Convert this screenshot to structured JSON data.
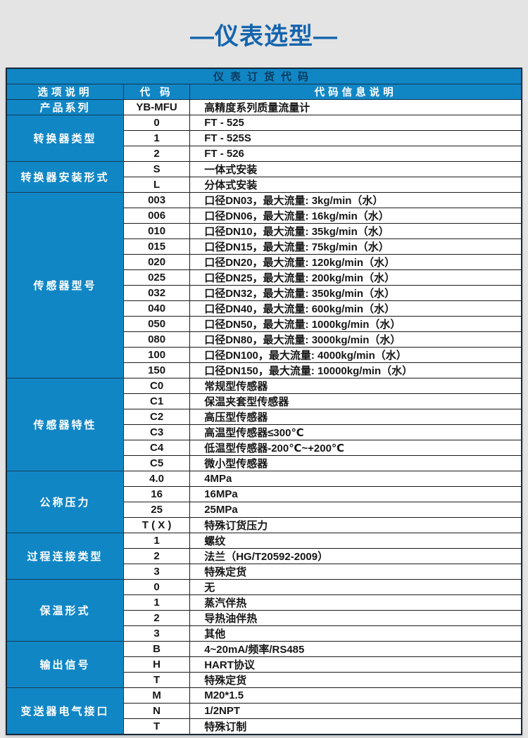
{
  "page_title": "—仪表选型—",
  "table": {
    "title": "仪表订货代码",
    "columns": [
      "选项说明",
      "代 码",
      "代码信息说明"
    ],
    "groups": [
      {
        "label": "产品系列",
        "rows": [
          {
            "code": "YB-MFU",
            "desc": "高精度系列质量流量计"
          }
        ]
      },
      {
        "label": "转换器类型",
        "rows": [
          {
            "code": "0",
            "desc": "FT - 525"
          },
          {
            "code": "1",
            "desc": "FT - 525S"
          },
          {
            "code": "2",
            "desc": "FT - 526"
          }
        ]
      },
      {
        "label": "转换器安装形式",
        "rows": [
          {
            "code": "S",
            "desc": "一体式安装"
          },
          {
            "code": "L",
            "desc": "分体式安装"
          }
        ]
      },
      {
        "label": "传感器型号",
        "rows": [
          {
            "code": "003",
            "desc": "口径DN03，最大流量: 3kg/min（水）"
          },
          {
            "code": "006",
            "desc": "口径DN06，最大流量: 16kg/min（水）"
          },
          {
            "code": "010",
            "desc": "口径DN10，最大流量: 35kg/min（水）"
          },
          {
            "code": "015",
            "desc": "口径DN15，最大流量: 75kg/min（水）"
          },
          {
            "code": "020",
            "desc": "口径DN20，最大流量: 120kg/min（水）"
          },
          {
            "code": "025",
            "desc": "口径DN25，最大流量: 200kg/min（水）"
          },
          {
            "code": "032",
            "desc": "口径DN32，最大流量: 350kg/min（水）"
          },
          {
            "code": "040",
            "desc": "口径DN40，最大流量: 600kg/min（水）"
          },
          {
            "code": "050",
            "desc": "口径DN50，最大流量: 1000kg/min（水）"
          },
          {
            "code": "080",
            "desc": "口径DN80，最大流量: 3000kg/min（水）"
          },
          {
            "code": "100",
            "desc": "口径DN100，最大流量: 4000kg/min（水）"
          },
          {
            "code": "150",
            "desc": "口径DN150，最大流量: 10000kg/min（水）"
          }
        ]
      },
      {
        "label": "传感器特性",
        "rows": [
          {
            "code": "C0",
            "desc": "常规型传感器"
          },
          {
            "code": "C1",
            "desc": "保温夹套型传感器"
          },
          {
            "code": "C2",
            "desc": "高压型传感器"
          },
          {
            "code": "C3",
            "desc": "高温型传感器≤300℃"
          },
          {
            "code": "C4",
            "desc": "低温型传感器-200℃~+200℃"
          },
          {
            "code": "C5",
            "desc": "微小型传感器"
          }
        ]
      },
      {
        "label": "公称压力",
        "rows": [
          {
            "code": "4.0",
            "desc": "4MPa"
          },
          {
            "code": "16",
            "desc": "16MPa"
          },
          {
            "code": "25",
            "desc": "25MPa"
          },
          {
            "code": "T ( X )",
            "desc": "特殊订货压力"
          }
        ]
      },
      {
        "label": "过程连接类型",
        "rows": [
          {
            "code": "1",
            "desc": "螺纹"
          },
          {
            "code": "2",
            "desc": "法兰（HG/T20592-2009）"
          },
          {
            "code": "3",
            "desc": "特殊定货"
          }
        ]
      },
      {
        "label": "保温形式",
        "rows": [
          {
            "code": "0",
            "desc": "无"
          },
          {
            "code": "1",
            "desc": "蒸汽伴热"
          },
          {
            "code": "2",
            "desc": "导热油伴热"
          },
          {
            "code": "3",
            "desc": "其他"
          }
        ]
      },
      {
        "label": "输出信号",
        "rows": [
          {
            "code": "B",
            "desc": "4~20mA/频率/RS485"
          },
          {
            "code": "H",
            "desc": "HART协议"
          },
          {
            "code": "T",
            "desc": "特殊定货"
          }
        ]
      },
      {
        "label": "变送器电气接口",
        "rows": [
          {
            "code": "M",
            "desc": "M20*1.5"
          },
          {
            "code": "N",
            "desc": "1/2NPT"
          },
          {
            "code": "T",
            "desc": "特殊订制"
          }
        ]
      }
    ]
  },
  "colors": {
    "accent_blue": "#1186c5",
    "header_text_navy": "#0e3a5c",
    "title_blue": "#1565ae",
    "page_background": "#e4e4e4",
    "border_dark": "#1b1b1b"
  }
}
